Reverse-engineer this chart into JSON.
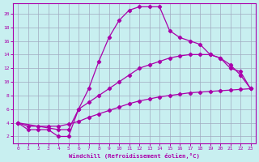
{
  "background_color": "#c8eff0",
  "grid_color": "#a0aac0",
  "line_color": "#aa00aa",
  "xlabel": "Windchill (Refroidissement éolien,°C)",
  "xlim": [
    -0.5,
    23.5
  ],
  "ylim": [
    1.0,
    21.5
  ],
  "xticks": [
    0,
    1,
    2,
    3,
    4,
    5,
    6,
    7,
    8,
    9,
    10,
    11,
    12,
    13,
    14,
    15,
    16,
    17,
    18,
    19,
    20,
    21,
    22,
    23
  ],
  "yticks": [
    2,
    4,
    6,
    8,
    10,
    12,
    14,
    16,
    18,
    20
  ],
  "curve_main_x": [
    0,
    1,
    2,
    3,
    4,
    5,
    6,
    7,
    8,
    9,
    10,
    11,
    12,
    13,
    14,
    15,
    16,
    17,
    18,
    19
  ],
  "curve_main_y": [
    4,
    3,
    3,
    3,
    2,
    2,
    6,
    9,
    13,
    16.5,
    19,
    20.5,
    21,
    21,
    21,
    17.5,
    16.5,
    16,
    15.5,
    14
  ],
  "curve_upper_return_x": [
    19,
    20,
    21,
    22,
    23
  ],
  "curve_upper_return_y": [
    14,
    13.5,
    12,
    11.5,
    9
  ],
  "curve_mid_x": [
    0,
    4,
    5,
    6,
    7,
    8,
    9,
    10,
    11,
    12,
    13,
    14,
    15,
    16,
    17,
    18,
    19,
    20,
    21,
    22,
    23
  ],
  "curve_mid_y": [
    4,
    3,
    3,
    6,
    7,
    8,
    9,
    10,
    11,
    12,
    12.5,
    13,
    13.5,
    13.8,
    14,
    14,
    14,
    13.5,
    12.5,
    11,
    9
  ],
  "curve_low_x": [
    0,
    1,
    2,
    3,
    4,
    5,
    6,
    7,
    8,
    9,
    10,
    11,
    12,
    13,
    14,
    15,
    16,
    17,
    18,
    19,
    20,
    21,
    22,
    23
  ],
  "curve_low_y": [
    4,
    3.5,
    3.5,
    3.5,
    3.5,
    3.8,
    4.2,
    4.8,
    5.3,
    5.8,
    6.3,
    6.8,
    7.2,
    7.5,
    7.8,
    8.0,
    8.2,
    8.4,
    8.5,
    8.6,
    8.7,
    8.8,
    8.9,
    9.0
  ]
}
